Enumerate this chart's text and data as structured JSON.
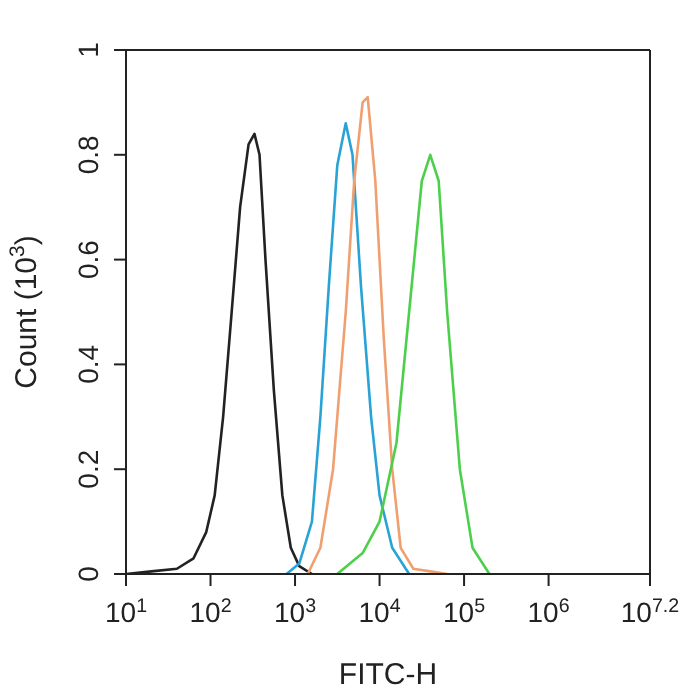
{
  "chart_data": {
    "type": "line",
    "xlabel": "FITC-H",
    "ylabel": "Count (10$^{3}$)",
    "log": "x",
    "grid": false,
    "marker": "none",
    "line_style": "solid",
    "xlim": [
      10,
      15848932
    ],
    "ylim": [
      0,
      1
    ],
    "xticks": [
      {
        "value": 10,
        "label": "10$^{1}$"
      },
      {
        "value": 100,
        "label": "10$^{2}$"
      },
      {
        "value": 1000,
        "label": "10$^{3}$"
      },
      {
        "value": 10000,
        "label": "10$^{4}$"
      },
      {
        "value": 100000,
        "label": "10$^{5}$"
      },
      {
        "value": 1000000,
        "label": "10$^{6}$"
      },
      {
        "value": 15848932,
        "label": "10$^{7.2}$"
      }
    ],
    "yticks": [
      0,
      0.2,
      0.4,
      0.6,
      0.8,
      1
    ],
    "series": [
      {
        "color": "#222222",
        "x": [
          10,
          20,
          40,
          63,
          89,
          112,
          141,
          178,
          224,
          282,
          331,
          380,
          447,
          562,
          708,
          891,
          1122,
          1585
        ],
        "values": [
          0,
          0.005,
          0.01,
          0.03,
          0.08,
          0.15,
          0.3,
          0.5,
          0.7,
          0.82,
          0.84,
          0.8,
          0.6,
          0.35,
          0.15,
          0.05,
          0.015,
          0
        ]
      },
      {
        "color": "#29a3d6",
        "x": [
          794,
          1122,
          1585,
          1995,
          2512,
          3162,
          3981,
          4786,
          6026,
          7943,
          10000,
          14125,
          22387
        ],
        "values": [
          0,
          0.02,
          0.1,
          0.3,
          0.55,
          0.78,
          0.86,
          0.8,
          0.55,
          0.3,
          0.15,
          0.05,
          0
        ]
      },
      {
        "color": "#f0a070",
        "x": [
          1413,
          1995,
          2818,
          3981,
          5012,
          6310,
          7244,
          8913,
          11220,
          14125,
          17783,
          25119,
          39811,
          63096
        ],
        "values": [
          0,
          0.05,
          0.2,
          0.5,
          0.75,
          0.9,
          0.91,
          0.75,
          0.45,
          0.2,
          0.05,
          0.01,
          0.005,
          0
        ]
      },
      {
        "color": "#4cd04c",
        "x": [
          3162,
          6310,
          10000,
          15849,
          22387,
          31623,
          39811,
          50119,
          63096,
          89125,
          125893,
          199526
        ],
        "values": [
          0,
          0.04,
          0.1,
          0.25,
          0.5,
          0.75,
          0.8,
          0.75,
          0.5,
          0.2,
          0.05,
          0
        ]
      }
    ]
  }
}
